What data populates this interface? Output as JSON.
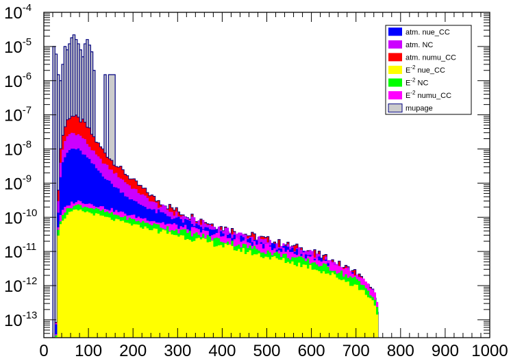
{
  "chart_data": {
    "type": "area",
    "y_scale": "log",
    "xlim": [
      0,
      1000
    ],
    "ylim": [
      3e-14,
      0.0001
    ],
    "bin_width": 5,
    "x_ticks": [
      0,
      100,
      200,
      300,
      400,
      500,
      600,
      700,
      800,
      900,
      1000
    ],
    "x_tick_labels": [
      "0",
      "100",
      "200",
      "300",
      "400",
      "500",
      "600",
      "700",
      "800",
      "900",
      "1000"
    ],
    "y_ticks": [
      {
        "value": 1e-13,
        "base": "10",
        "exp": "-13"
      },
      {
        "value": 1e-12,
        "base": "10",
        "exp": "-12"
      },
      {
        "value": 1e-11,
        "base": "10",
        "exp": "-11"
      },
      {
        "value": 1e-10,
        "base": "10",
        "exp": "-10"
      },
      {
        "value": 1e-09,
        "base": "10",
        "exp": "-9"
      },
      {
        "value": 1e-08,
        "base": "10",
        "exp": "-8"
      },
      {
        "value": 1e-07,
        "base": "10",
        "exp": "-7"
      },
      {
        "value": 1e-06,
        "base": "10",
        "exp": "-6"
      },
      {
        "value": 1e-05,
        "base": "10",
        "exp": "-5"
      },
      {
        "value": 0.0001,
        "base": "10",
        "exp": "-4"
      }
    ],
    "series_stack_bottom_to_top": [
      {
        "key": "E2_nue_CC",
        "name": "E-2 nue_CC",
        "color": "#ffff00"
      },
      {
        "key": "E2_NC",
        "name": "E-2 NC",
        "color": "#00ff00"
      },
      {
        "key": "E2_numu_CC",
        "name": "E-2 numu_CC",
        "color": "#ff00ff"
      },
      {
        "key": "atm_nue_CC",
        "name": "atm. nue_CC",
        "color": "#0000ff"
      },
      {
        "key": "atm_NC",
        "name": "atm. NC",
        "color": "#cc00ff"
      },
      {
        "key": "atm_numu_CC",
        "name": "atm. numu_CC",
        "color": "#ff0000"
      },
      {
        "key": "mupage",
        "name": "mupage",
        "color": "#cccccc"
      }
    ],
    "cumulative_top_profiles": {
      "E2_nue_CC": [
        [
          20,
          1e-14
        ],
        [
          27,
          1e-14
        ],
        [
          29,
          1e-12
        ],
        [
          32,
          3e-11
        ],
        [
          40,
          8e-11
        ],
        [
          60,
          1.4e-10
        ],
        [
          75,
          1.6e-10
        ],
        [
          100,
          1.4e-10
        ],
        [
          150,
          9e-11
        ],
        [
          200,
          6e-11
        ],
        [
          300,
          3e-11
        ],
        [
          400,
          1.5e-11
        ],
        [
          500,
          7e-12
        ],
        [
          600,
          3.5e-12
        ],
        [
          650,
          2e-12
        ],
        [
          700,
          1e-12
        ],
        [
          730,
          5e-13
        ],
        [
          745,
          2.5e-13
        ],
        [
          750,
          1.2e-13
        ],
        [
          752,
          4e-14
        ],
        [
          753,
          1e-14
        ]
      ],
      "E2_NC": [
        [
          20,
          1e-14
        ],
        [
          27,
          1e-14
        ],
        [
          29,
          1.5e-12
        ],
        [
          32,
          4e-11
        ],
        [
          40,
          1.2e-10
        ],
        [
          60,
          2e-10
        ],
        [
          75,
          2.3e-10
        ],
        [
          100,
          2e-10
        ],
        [
          150,
          1.3e-10
        ],
        [
          200,
          8.5e-11
        ],
        [
          300,
          4.2e-11
        ],
        [
          400,
          2.1e-11
        ],
        [
          500,
          1e-11
        ],
        [
          600,
          5e-12
        ],
        [
          650,
          3e-12
        ],
        [
          700,
          1.5e-12
        ],
        [
          730,
          7e-13
        ],
        [
          745,
          3.5e-13
        ],
        [
          750,
          1.6e-13
        ],
        [
          753,
          1e-14
        ]
      ],
      "E2_numu_CC": [
        [
          20,
          1e-14
        ],
        [
          27,
          1e-14
        ],
        [
          29,
          2e-12
        ],
        [
          32,
          5e-11
        ],
        [
          40,
          1.5e-10
        ],
        [
          60,
          2.6e-10
        ],
        [
          75,
          3e-10
        ],
        [
          100,
          2.6e-10
        ],
        [
          150,
          1.7e-10
        ],
        [
          200,
          1.1e-10
        ],
        [
          300,
          5.5e-11
        ],
        [
          400,
          2.8e-11
        ],
        [
          500,
          1.4e-11
        ],
        [
          600,
          7e-12
        ],
        [
          650,
          4e-12
        ],
        [
          700,
          2e-12
        ],
        [
          730,
          1e-12
        ],
        [
          745,
          5e-13
        ],
        [
          750,
          2e-13
        ],
        [
          753,
          1e-14
        ]
      ],
      "atm_nue_CC": [
        [
          20,
          1e-14
        ],
        [
          27,
          1e-14
        ],
        [
          29,
          3e-11
        ],
        [
          32,
          1e-10
        ],
        [
          35,
          8e-10
        ],
        [
          40,
          3e-09
        ],
        [
          50,
          7e-09
        ],
        [
          60,
          1e-08
        ],
        [
          75,
          1e-08
        ],
        [
          90,
          7e-09
        ],
        [
          100,
          5e-09
        ],
        [
          120,
          2.5e-09
        ],
        [
          150,
          1e-09
        ],
        [
          200,
          3e-10
        ],
        [
          250,
          1.5e-10
        ],
        [
          300,
          9e-11
        ],
        [
          400,
          3.2e-11
        ],
        [
          500,
          1.6e-11
        ],
        [
          600,
          8e-12
        ],
        [
          700,
          2.1e-12
        ],
        [
          745,
          5e-13
        ],
        [
          753,
          1e-14
        ]
      ],
      "atm_NC": [
        [
          20,
          1e-14
        ],
        [
          27,
          1e-14
        ],
        [
          29,
          4e-11
        ],
        [
          32,
          2e-10
        ],
        [
          35,
          2e-09
        ],
        [
          40,
          8e-09
        ],
        [
          50,
          2e-08
        ],
        [
          60,
          3e-08
        ],
        [
          75,
          2.8e-08
        ],
        [
          90,
          2e-08
        ],
        [
          100,
          1.3e-08
        ],
        [
          120,
          6e-09
        ],
        [
          150,
          2.5e-09
        ],
        [
          200,
          7e-10
        ],
        [
          250,
          2.5e-10
        ],
        [
          300,
          1.2e-10
        ],
        [
          400,
          4.5e-11
        ],
        [
          500,
          2e-11
        ],
        [
          600,
          9e-12
        ],
        [
          700,
          2.3e-12
        ],
        [
          745,
          5e-13
        ],
        [
          753,
          1e-14
        ]
      ],
      "atm_numu_CC": [
        [
          20,
          1e-14
        ],
        [
          27,
          1e-14
        ],
        [
          29,
          5e-11
        ],
        [
          32,
          5e-10
        ],
        [
          35,
          5e-09
        ],
        [
          40,
          2e-08
        ],
        [
          50,
          6e-08
        ],
        [
          60,
          1e-07
        ],
        [
          75,
          8e-08
        ],
        [
          90,
          6e-08
        ],
        [
          100,
          4e-08
        ],
        [
          120,
          1.5e-08
        ],
        [
          150,
          5e-09
        ],
        [
          200,
          1.2e-09
        ],
        [
          250,
          3.5e-10
        ],
        [
          300,
          1.5e-10
        ],
        [
          400,
          5e-11
        ],
        [
          500,
          2.2e-11
        ],
        [
          600,
          1e-11
        ],
        [
          700,
          2.4e-12
        ],
        [
          745,
          5e-13
        ],
        [
          753,
          1e-14
        ]
      ]
    },
    "mupage_bins": [
      [
        20,
        25,
        1e-05
      ],
      [
        25,
        30,
        6e-06
      ],
      [
        30,
        35,
        1.5e-06
      ],
      [
        35,
        40,
        1e-06
      ],
      [
        40,
        45,
        3e-06
      ],
      [
        45,
        50,
        1e-05
      ],
      [
        50,
        55,
        8e-06
      ],
      [
        55,
        60,
        1.2e-05
      ],
      [
        60,
        65,
        1.8e-05
      ],
      [
        65,
        70,
        2.2e-05
      ],
      [
        70,
        75,
        1.6e-05
      ],
      [
        75,
        80,
        1.2e-05
      ],
      [
        80,
        85,
        8e-06
      ],
      [
        85,
        90,
        5e-06
      ],
      [
        90,
        95,
        1.2e-05
      ],
      [
        95,
        100,
        1.6e-05
      ],
      [
        100,
        105,
        1.1e-05
      ],
      [
        105,
        110,
        7e-06
      ],
      [
        110,
        115,
        2e-06
      ],
      [
        135,
        140,
        1.5e-06
      ],
      [
        145,
        160,
        1.5e-06
      ]
    ],
    "legend": {
      "position": "top-right",
      "entries": [
        {
          "label": "atm. nue_CC",
          "color": "#0000ff"
        },
        {
          "label": "atm. NC",
          "color": "#cc00ff"
        },
        {
          "label": "atm. numu_CC",
          "color": "#ff0000"
        },
        {
          "label": "E-2 nue_CC",
          "prefix": "E",
          "exp": "-2",
          "suffix": " nue_CC",
          "color": "#ffff00"
        },
        {
          "label": "E-2 NC",
          "prefix": "E",
          "exp": "-2",
          "suffix": " NC",
          "color": "#00ff00"
        },
        {
          "label": "E-2 numu_CC",
          "prefix": "E",
          "exp": "-2",
          "suffix": " numu_CC",
          "color": "#ff00ff"
        },
        {
          "label": "mupage",
          "color": "#cccccc"
        }
      ]
    },
    "outline_color": "#000080",
    "grid": false
  }
}
